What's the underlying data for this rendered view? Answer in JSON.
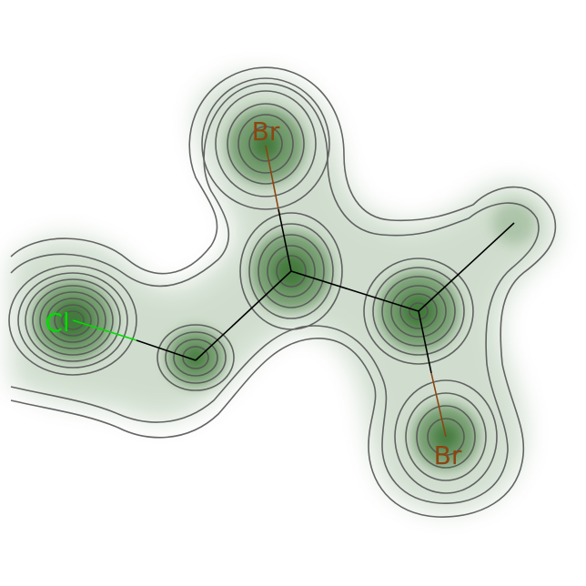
{
  "figure": {
    "kind": "molecular density contour map",
    "colors": {
      "background": "#ffffff",
      "density": "#2e6b26",
      "contour": "#555555",
      "bond": "#000000",
      "chlorine": "#00dd00",
      "bromine": "#8b4513"
    }
  },
  "atoms": [
    {
      "id": "cl",
      "label": "Cl",
      "color": "#00dd00"
    },
    {
      "id": "br1",
      "label": "Br",
      "color": "#8b4513"
    },
    {
      "id": "br2",
      "label": "Br",
      "color": "#8b4513"
    }
  ]
}
